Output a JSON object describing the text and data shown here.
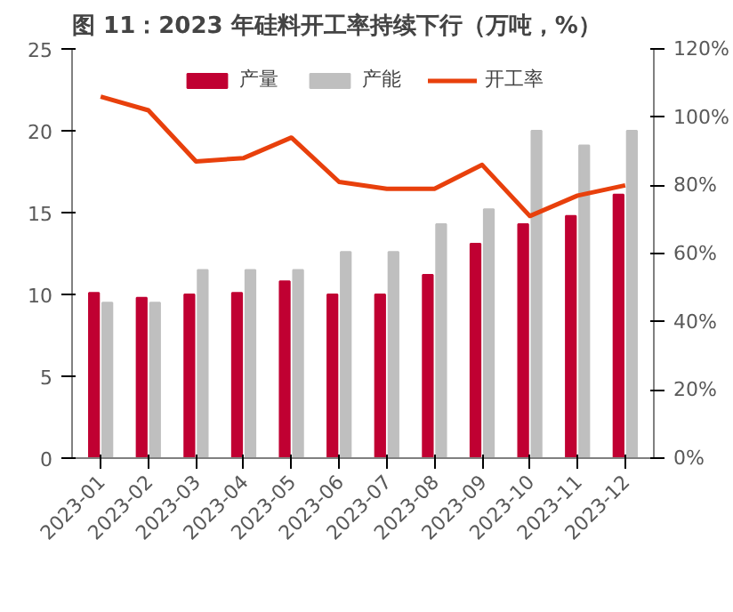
{
  "chart_data": {
    "type": "bar",
    "title": "图 11：2023 年硅料开工率持续下行（万吨，%）",
    "categories": [
      "2023-01",
      "2023-02",
      "2023-03",
      "2023-04",
      "2023-05",
      "2023-06",
      "2023-07",
      "2023-08",
      "2023-09",
      "2023-10",
      "2023-11",
      "2023-12"
    ],
    "series": [
      {
        "name": "产量",
        "color": "#c00032",
        "values": [
          10.1,
          9.8,
          10.0,
          10.1,
          10.8,
          10.0,
          10.0,
          11.2,
          13.1,
          14.3,
          14.8,
          16.1
        ]
      },
      {
        "name": "产能",
        "color": "#bfbfbf",
        "values": [
          9.5,
          9.5,
          11.5,
          11.5,
          11.5,
          12.6,
          12.6,
          14.3,
          15.2,
          20.0,
          19.1,
          20.0
        ]
      },
      {
        "name": "开工率",
        "type": "line",
        "axis": "y2",
        "color": "#e8400c",
        "values": [
          106,
          102,
          87,
          88,
          94,
          81,
          79,
          79,
          86,
          71,
          77,
          80
        ]
      }
    ],
    "ylim": [
      0,
      25
    ],
    "yticks": [
      0,
      5,
      10,
      15,
      20,
      25
    ],
    "y2lim": [
      0,
      120
    ],
    "y2ticks": [
      {
        "value": 0,
        "label": "0%"
      },
      {
        "value": 20,
        "label": "20%"
      },
      {
        "value": 40,
        "label": "40%"
      },
      {
        "value": 60,
        "label": "60%"
      },
      {
        "value": 80,
        "label": "80%"
      },
      {
        "value": 100,
        "label": "100%"
      },
      {
        "value": 120,
        "label": "120%"
      }
    ],
    "legend": "top",
    "grid": false
  }
}
